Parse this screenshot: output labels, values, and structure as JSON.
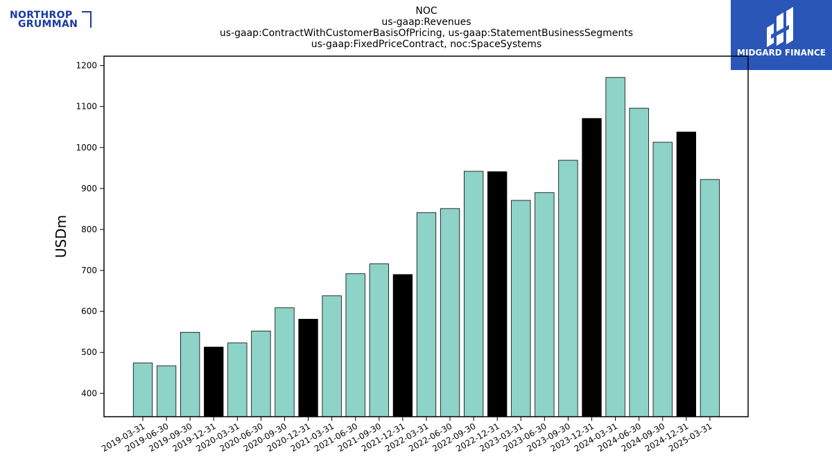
{
  "logos": {
    "left_line1": "NORTHROP",
    "left_line2": "GRUMMAN",
    "right_text": "MIDGARD FINANCE"
  },
  "colors": {
    "bar_default": "#8dd3c7",
    "bar_highlight": "#000000",
    "logo_left": "#1a3aa0",
    "logo_right_bg": "#2a56b8"
  },
  "chart_data": {
    "type": "bar",
    "title_lines": [
      "NOC",
      "us-gaap:Revenues",
      "us-gaap:ContractWithCustomerBasisOfPricing, us-gaap:StatementBusinessSegments",
      "us-gaap:FixedPriceContract, noc:SpaceSystems"
    ],
    "xlabel": "",
    "ylabel": "USDm",
    "ylim": [
      343,
      1223
    ],
    "yticks": [
      400,
      500,
      600,
      700,
      800,
      900,
      1000,
      1100,
      1200
    ],
    "grid": false,
    "categories": [
      "2019-03-31",
      "2019-06-30",
      "2019-09-30",
      "2019-12-31",
      "2020-03-31",
      "2020-06-30",
      "2020-09-30",
      "2020-12-31",
      "2021-03-31",
      "2021-06-30",
      "2021-09-30",
      "2021-12-31",
      "2022-03-31",
      "2022-06-30",
      "2022-09-30",
      "2022-12-31",
      "2023-03-31",
      "2023-06-30",
      "2023-09-30",
      "2023-12-31",
      "2024-03-31",
      "2024-06-30",
      "2024-09-30",
      "2024-12-31",
      "2025-03-31"
    ],
    "values": [
      474,
      467,
      549,
      513,
      523,
      552,
      609,
      581,
      638,
      692,
      716,
      690,
      841,
      851,
      942,
      941,
      871,
      890,
      969,
      1071,
      1171,
      1096,
      1013,
      1038,
      922
    ],
    "highlight": [
      false,
      false,
      false,
      true,
      false,
      false,
      false,
      true,
      false,
      false,
      false,
      true,
      false,
      false,
      false,
      true,
      false,
      false,
      false,
      true,
      false,
      false,
      false,
      true,
      false
    ]
  }
}
